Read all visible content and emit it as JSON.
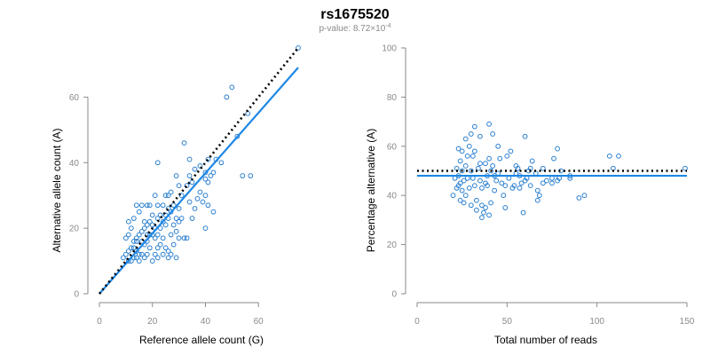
{
  "title": "rs1675520",
  "subtitle": {
    "prefix": "p-value: 8.72×10",
    "exponent": "-4"
  },
  "colors": {
    "points": "#2a7fcf",
    "fit_line": "#1e88e5",
    "reference_line": "#000000",
    "axis": "#8a8a8a"
  },
  "chart_data": [
    {
      "type": "scatter",
      "panel": "left",
      "xlabel": "Reference allele count (G)",
      "ylabel": "Alternative allele count (A)",
      "xlim": [
        0,
        75
      ],
      "ylim": [
        0,
        75
      ],
      "xticks": [
        0,
        20,
        40,
        60
      ],
      "yticks": [
        0,
        20,
        40,
        60
      ],
      "grid": false,
      "lines": [
        {
          "style": "dotted",
          "color": "#000000",
          "x": [
            0,
            75
          ],
          "y": [
            0,
            75
          ]
        },
        {
          "style": "solid",
          "color": "#1e88e5",
          "x": [
            0,
            75
          ],
          "y": [
            0,
            69
          ]
        }
      ],
      "points": [
        [
          75,
          75
        ],
        [
          50,
          63
        ],
        [
          48,
          60
        ],
        [
          56,
          55
        ],
        [
          52,
          48
        ],
        [
          46,
          40
        ],
        [
          41,
          41
        ],
        [
          43,
          37
        ],
        [
          44,
          41
        ],
        [
          42,
          36
        ],
        [
          40,
          35
        ],
        [
          41,
          34
        ],
        [
          40,
          37
        ],
        [
          38,
          39
        ],
        [
          36,
          38
        ],
        [
          35,
          34
        ],
        [
          33,
          33
        ],
        [
          34,
          36
        ],
        [
          32,
          46
        ],
        [
          34,
          41
        ],
        [
          29,
          36
        ],
        [
          30,
          33
        ],
        [
          30,
          26
        ],
        [
          39,
          28
        ],
        [
          40,
          20
        ],
        [
          41,
          27
        ],
        [
          43,
          25
        ],
        [
          54,
          36
        ],
        [
          57,
          36
        ],
        [
          31,
          30
        ],
        [
          28,
          27
        ],
        [
          27,
          31
        ],
        [
          25,
          30
        ],
        [
          26,
          26
        ],
        [
          24,
          27
        ],
        [
          22,
          27
        ],
        [
          22,
          40
        ],
        [
          21,
          30
        ],
        [
          22,
          23
        ],
        [
          20,
          21
        ],
        [
          21,
          20
        ],
        [
          19,
          27
        ],
        [
          18,
          27
        ],
        [
          17,
          22
        ],
        [
          16,
          27
        ],
        [
          15,
          25
        ],
        [
          14,
          27
        ],
        [
          13,
          23
        ],
        [
          12,
          20
        ],
        [
          11,
          22
        ],
        [
          11,
          18
        ],
        [
          10,
          17
        ],
        [
          11,
          13
        ],
        [
          11,
          10
        ],
        [
          12,
          10
        ],
        [
          13,
          11
        ],
        [
          13,
          14
        ],
        [
          14,
          16
        ],
        [
          14,
          13
        ],
        [
          15,
          10
        ],
        [
          15,
          12
        ],
        [
          16,
          16
        ],
        [
          17,
          15
        ],
        [
          17,
          11
        ],
        [
          18,
          12
        ],
        [
          18,
          18
        ],
        [
          19,
          18
        ],
        [
          19,
          14
        ],
        [
          20,
          10
        ],
        [
          21,
          12
        ],
        [
          22,
          11
        ],
        [
          22,
          18
        ],
        [
          23,
          15
        ],
        [
          23,
          20
        ],
        [
          24,
          17
        ],
        [
          25,
          14
        ],
        [
          25,
          21
        ],
        [
          26,
          13
        ],
        [
          26,
          23
        ],
        [
          27,
          12
        ],
        [
          27,
          18
        ],
        [
          28,
          15
        ],
        [
          29,
          19
        ],
        [
          29,
          11
        ],
        [
          30,
          17
        ],
        [
          31,
          23
        ],
        [
          32,
          17
        ],
        [
          33,
          17
        ],
        [
          34,
          28
        ],
        [
          35,
          23
        ],
        [
          36,
          26
        ],
        [
          37,
          29
        ],
        [
          38,
          31
        ],
        [
          40,
          30
        ],
        [
          26,
          30
        ],
        [
          24,
          22
        ],
        [
          27,
          25
        ],
        [
          29,
          23
        ],
        [
          30,
          22
        ],
        [
          28,
          21
        ],
        [
          25,
          24
        ],
        [
          23,
          24
        ],
        [
          18,
          21
        ],
        [
          16,
          19
        ],
        [
          14,
          17
        ],
        [
          12,
          14
        ],
        [
          13,
          16
        ],
        [
          15,
          18
        ],
        [
          17,
          20
        ],
        [
          20,
          24
        ],
        [
          19,
          22
        ],
        [
          21,
          17
        ],
        [
          22,
          14
        ],
        [
          10,
          12
        ],
        [
          9,
          11
        ],
        [
          16,
          12
        ],
        [
          14,
          11
        ],
        [
          18,
          16
        ],
        [
          20,
          18
        ],
        [
          24,
          12
        ],
        [
          26,
          11
        ]
      ]
    },
    {
      "type": "scatter",
      "panel": "right",
      "xlabel": "Total number of reads",
      "ylabel": "Percentage alternative (A)",
      "xlim": [
        0,
        150
      ],
      "ylim": [
        0,
        100
      ],
      "xticks": [
        0,
        50,
        100,
        150
      ],
      "yticks": [
        0,
        20,
        40,
        60,
        80,
        100
      ],
      "grid": false,
      "lines": [
        {
          "style": "dotted",
          "color": "#000000",
          "x": [
            0,
            150
          ],
          "y": [
            50,
            50
          ]
        },
        {
          "style": "solid",
          "color": "#1e88e5",
          "x": [
            0,
            150
          ],
          "y": [
            48,
            48
          ]
        }
      ],
      "points": [
        [
          149,
          51
        ],
        [
          112,
          56
        ],
        [
          107,
          56
        ],
        [
          109,
          51
        ],
        [
          93,
          40
        ],
        [
          90,
          39
        ],
        [
          85,
          48
        ],
        [
          80,
          50
        ],
        [
          79,
          47
        ],
        [
          78,
          59
        ],
        [
          78,
          46
        ],
        [
          76,
          55
        ],
        [
          75,
          47
        ],
        [
          72,
          46
        ],
        [
          70,
          45
        ],
        [
          68,
          40
        ],
        [
          67,
          42
        ],
        [
          67,
          38
        ],
        [
          66,
          49
        ],
        [
          64,
          54
        ],
        [
          63,
          51
        ],
        [
          62,
          50
        ],
        [
          61,
          47
        ],
        [
          60,
          64
        ],
        [
          59,
          33
        ],
        [
          58,
          45
        ],
        [
          57,
          43
        ],
        [
          56,
          51
        ],
        [
          55,
          49
        ],
        [
          54,
          44
        ],
        [
          53,
          43
        ],
        [
          52,
          58
        ],
        [
          51,
          47
        ],
        [
          50,
          56
        ],
        [
          49,
          35
        ],
        [
          49,
          44
        ],
        [
          48,
          40
        ],
        [
          47,
          45
        ],
        [
          46,
          55
        ],
        [
          45,
          60
        ],
        [
          44,
          46
        ],
        [
          43,
          42
        ],
        [
          43,
          48
        ],
        [
          42,
          65
        ],
        [
          42,
          52
        ],
        [
          41,
          50
        ],
        [
          41,
          37
        ],
        [
          40,
          69
        ],
        [
          40,
          55
        ],
        [
          39,
          48
        ],
        [
          39,
          44
        ],
        [
          38,
          53
        ],
        [
          38,
          45
        ],
        [
          37,
          33
        ],
        [
          36,
          43
        ],
        [
          36,
          36
        ],
        [
          35,
          64
        ],
        [
          35,
          53
        ],
        [
          35,
          46
        ],
        [
          34,
          51
        ],
        [
          33,
          38
        ],
        [
          33,
          34
        ],
        [
          32,
          68
        ],
        [
          32,
          58
        ],
        [
          32,
          44
        ],
        [
          31,
          56
        ],
        [
          31,
          47
        ],
        [
          30,
          65
        ],
        [
          30,
          50
        ],
        [
          30,
          36
        ],
        [
          29,
          60
        ],
        [
          29,
          43
        ],
        [
          28,
          56
        ],
        [
          28,
          47
        ],
        [
          27,
          63
        ],
        [
          27,
          52
        ],
        [
          27,
          40
        ],
        [
          26,
          46
        ],
        [
          26,
          37
        ],
        [
          25,
          58
        ],
        [
          25,
          50
        ],
        [
          25,
          42
        ],
        [
          24,
          54
        ],
        [
          24,
          45
        ],
        [
          24,
          38
        ],
        [
          23,
          59
        ],
        [
          23,
          48
        ],
        [
          23,
          44
        ],
        [
          22,
          51
        ],
        [
          22,
          43
        ],
        [
          21,
          47
        ],
        [
          20,
          40
        ],
        [
          45,
          49
        ],
        [
          55,
          52
        ],
        [
          57,
          48
        ],
        [
          60,
          46
        ],
        [
          63,
          44
        ],
        [
          70,
          51
        ],
        [
          75,
          45
        ],
        [
          85,
          47
        ],
        [
          40,
          32
        ],
        [
          38,
          35
        ],
        [
          36,
          31
        ]
      ]
    }
  ]
}
